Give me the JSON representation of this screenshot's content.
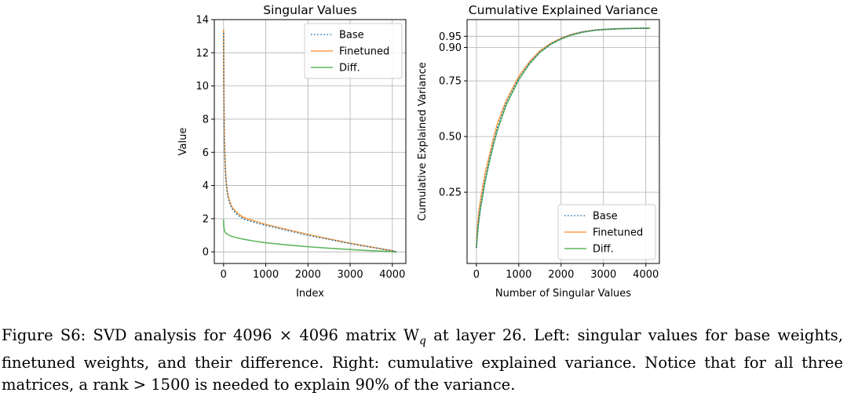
{
  "chart_data": [
    {
      "type": "line",
      "title": "Singular Values",
      "xlabel": "Index",
      "ylabel": "Value",
      "xlim": [
        -220,
        4320
      ],
      "ylim": [
        -0.7,
        14
      ],
      "xticks": [
        0,
        1000,
        2000,
        3000,
        4000
      ],
      "xtick_labels": [
        "0",
        "1000",
        "2000",
        "3000",
        "4000"
      ],
      "yticks": [
        0,
        2,
        4,
        6,
        8,
        10,
        12,
        14
      ],
      "ytick_labels": [
        "0",
        "2",
        "4",
        "6",
        "8",
        "10",
        "12",
        "14"
      ],
      "grid": true,
      "legend": "upper right",
      "series": [
        {
          "name": "Base",
          "color": "#1f77b4",
          "style": "dotted",
          "x": [
            0,
            5,
            10,
            20,
            40,
            60,
            80,
            100,
            150,
            200,
            300,
            400,
            500,
            700,
            1000,
            1500,
            2000,
            2500,
            3000,
            3500,
            3800,
            4000,
            4095
          ],
          "y": [
            13.2,
            10.5,
            8.5,
            6.5,
            5.0,
            4.2,
            3.7,
            3.35,
            2.9,
            2.6,
            2.3,
            2.1,
            1.95,
            1.8,
            1.6,
            1.3,
            1.0,
            0.75,
            0.5,
            0.28,
            0.15,
            0.07,
            0.0
          ]
        },
        {
          "name": "Finetuned",
          "color": "#ff7f0e",
          "style": "solid",
          "x": [
            0,
            5,
            10,
            20,
            40,
            60,
            80,
            100,
            150,
            200,
            300,
            400,
            500,
            700,
            1000,
            1500,
            2000,
            2500,
            3000,
            3500,
            3800,
            4000,
            4095
          ],
          "y": [
            13.4,
            10.8,
            8.8,
            6.7,
            5.2,
            4.3,
            3.8,
            3.45,
            3.0,
            2.7,
            2.4,
            2.2,
            2.05,
            1.88,
            1.65,
            1.35,
            1.05,
            0.78,
            0.52,
            0.29,
            0.16,
            0.07,
            0.0
          ]
        },
        {
          "name": "Diff.",
          "color": "#2ca02c",
          "style": "solid",
          "x": [
            0,
            5,
            10,
            20,
            40,
            60,
            80,
            100,
            150,
            200,
            300,
            400,
            500,
            700,
            1000,
            1500,
            2000,
            2500,
            3000,
            3500,
            4000,
            4095
          ],
          "y": [
            1.95,
            1.6,
            1.45,
            1.3,
            1.18,
            1.12,
            1.08,
            1.05,
            0.98,
            0.93,
            0.86,
            0.8,
            0.75,
            0.66,
            0.55,
            0.42,
            0.31,
            0.22,
            0.14,
            0.07,
            0.02,
            0.0
          ]
        }
      ]
    },
    {
      "type": "line",
      "title": "Cumulative Explained Variance",
      "xlabel": "Number of Singular Values",
      "ylabel": "Cumulative Explained Variance",
      "xlim": [
        -220,
        4320
      ],
      "ylim": [
        -0.07,
        1.025
      ],
      "xticks": [
        0,
        1000,
        2000,
        3000,
        4000
      ],
      "xtick_labels": [
        "0",
        "1000",
        "2000",
        "3000",
        "4000"
      ],
      "yticks": [
        0.25,
        0.5,
        0.75,
        0.9,
        0.95
      ],
      "ytick_labels": [
        "0.25",
        "0.50",
        "0.75",
        "0.90",
        "0.95"
      ],
      "grid": true,
      "legend": "lower right",
      "series": [
        {
          "name": "Base",
          "color": "#1f77b4",
          "style": "dotted",
          "x": [
            0,
            20,
            50,
            100,
            200,
            300,
            400,
            500,
            700,
            1000,
            1250,
            1500,
            1750,
            2000,
            2250,
            2500,
            2800,
            3000,
            3300,
            3600,
            3900,
            4095
          ],
          "y": [
            0.0,
            0.06,
            0.12,
            0.19,
            0.3,
            0.39,
            0.47,
            0.54,
            0.65,
            0.76,
            0.83,
            0.88,
            0.915,
            0.94,
            0.958,
            0.97,
            0.978,
            0.981,
            0.984,
            0.985,
            0.986,
            0.986
          ]
        },
        {
          "name": "Finetuned",
          "color": "#ff7f0e",
          "style": "solid",
          "x": [
            0,
            20,
            50,
            100,
            200,
            300,
            400,
            500,
            700,
            1000,
            1250,
            1500,
            1750,
            2000,
            2250,
            2500,
            2800,
            3000,
            3300,
            3600,
            3900,
            4095
          ],
          "y": [
            0.0,
            0.08,
            0.15,
            0.22,
            0.33,
            0.41,
            0.49,
            0.56,
            0.66,
            0.77,
            0.835,
            0.885,
            0.918,
            0.942,
            0.959,
            0.97,
            0.978,
            0.981,
            0.984,
            0.985,
            0.986,
            0.986
          ]
        },
        {
          "name": "Diff.",
          "color": "#2ca02c",
          "style": "solid",
          "x": [
            0,
            20,
            50,
            100,
            200,
            300,
            400,
            500,
            700,
            1000,
            1250,
            1500,
            1750,
            2000,
            2250,
            2500,
            2800,
            3000,
            3300,
            3600,
            3900,
            4095
          ],
          "y": [
            0.0,
            0.05,
            0.11,
            0.18,
            0.29,
            0.38,
            0.46,
            0.53,
            0.64,
            0.755,
            0.825,
            0.878,
            0.913,
            0.938,
            0.956,
            0.968,
            0.977,
            0.98,
            0.983,
            0.985,
            0.986,
            0.986
          ]
        }
      ]
    }
  ],
  "caption": {
    "line1": "Figure S6: SVD analysis for 4096 × 4096 matrix W",
    "line1_sub": "q",
    "line1_rest": " at layer 26.  Left: singular values for base weights,",
    "line2": "finetuned weights, and their difference.  Right: cumulative explained variance.  Notice that for all three",
    "line3": "matrices, a rank > 1500 is needed to explain 90% of the variance."
  }
}
